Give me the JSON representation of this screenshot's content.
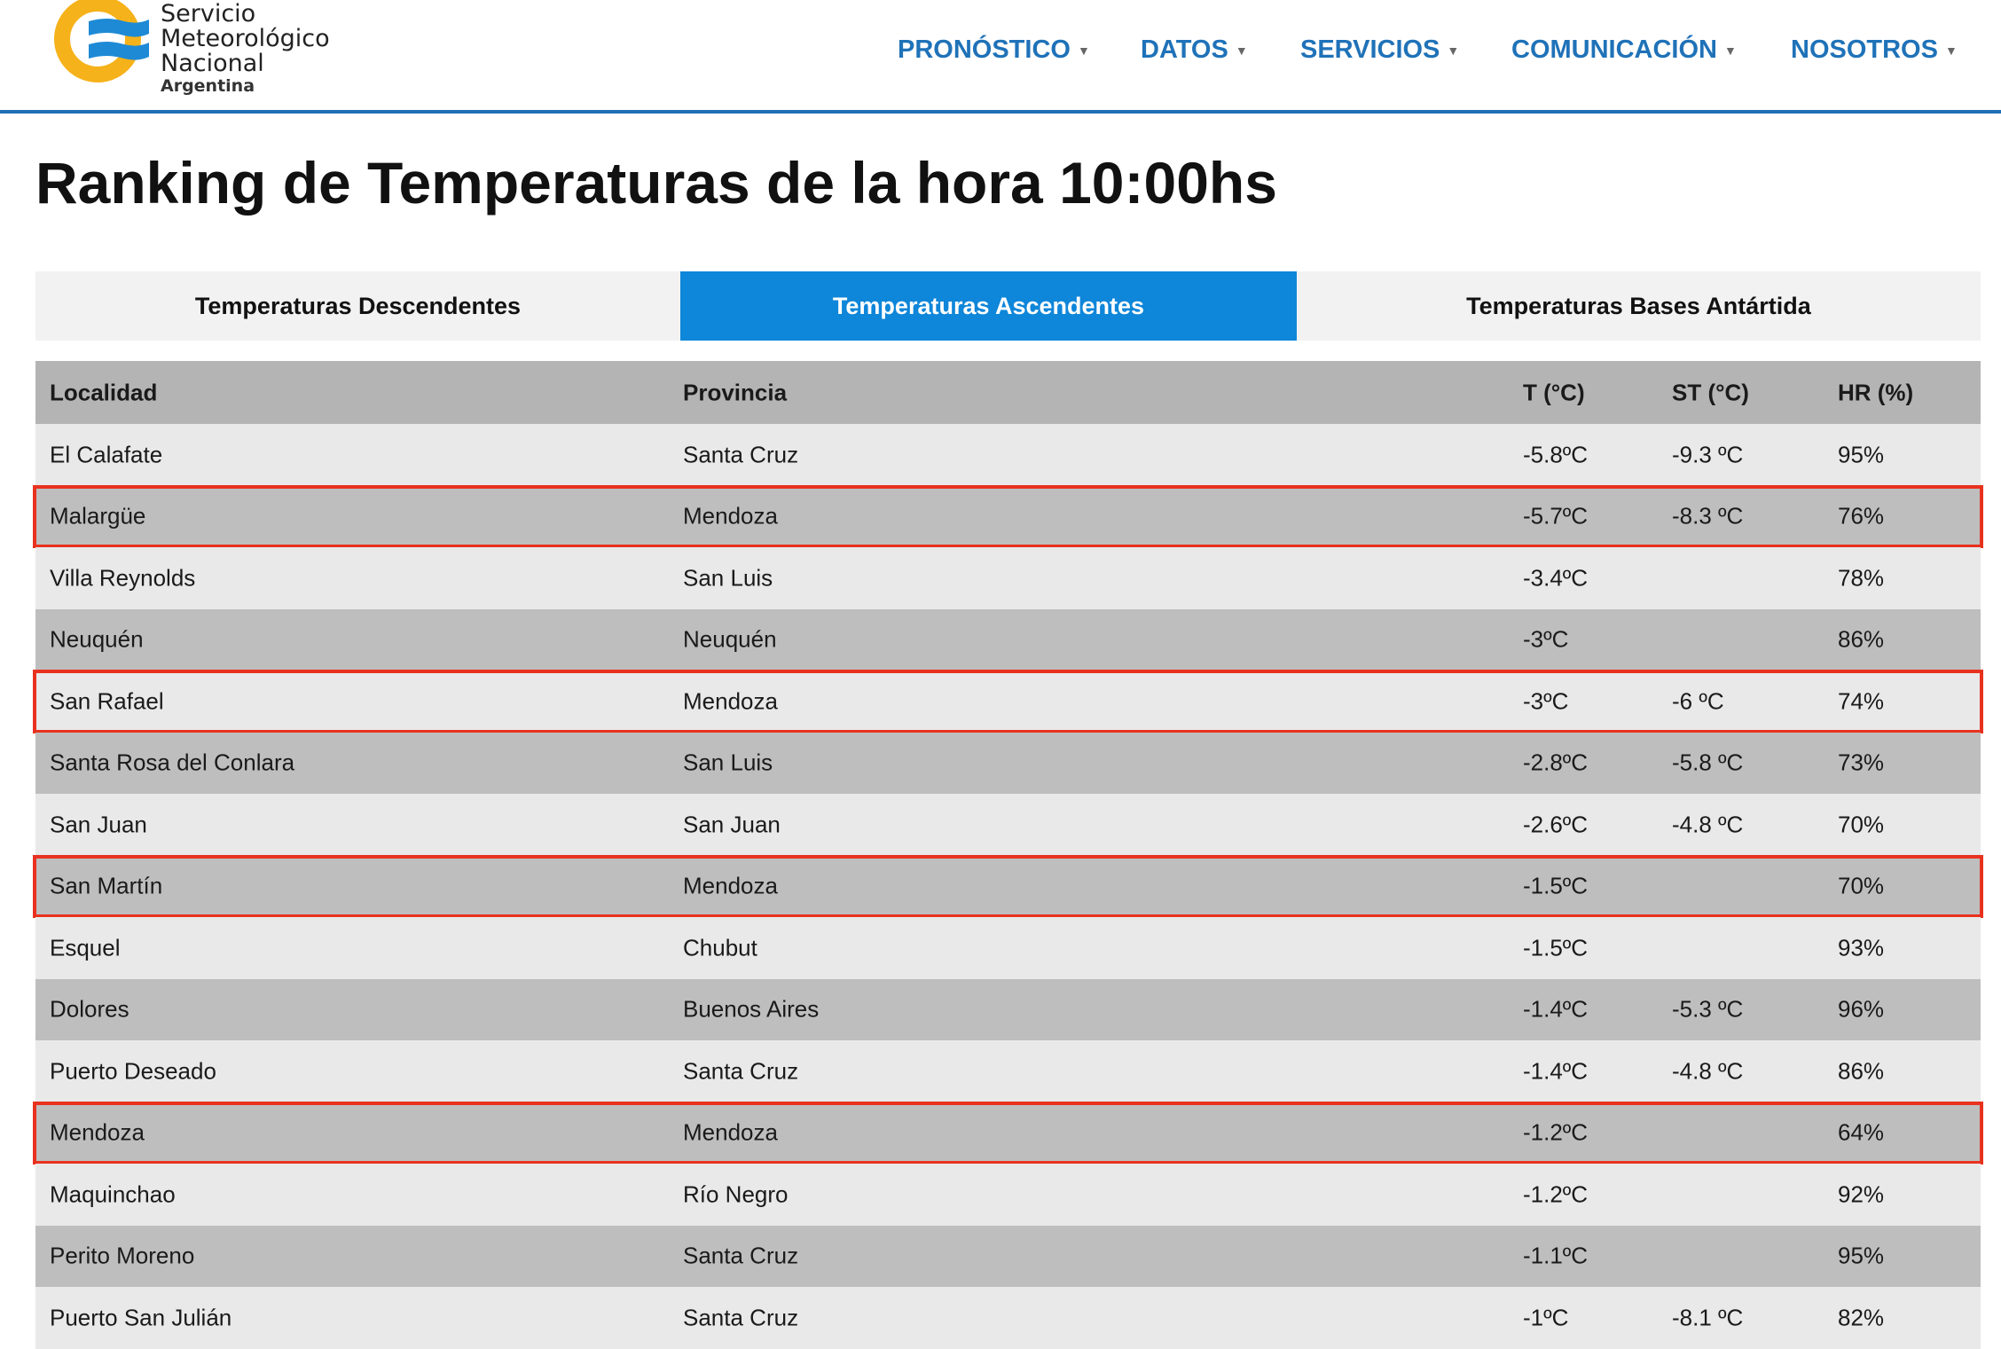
{
  "header": {
    "logo": {
      "line1": "Servicio",
      "line2": "Meteorológico",
      "line3": "Nacional",
      "line4": "Argentina"
    },
    "nav": [
      {
        "label": "PRONÓSTICO"
      },
      {
        "label": "DATOS"
      },
      {
        "label": "SERVICIOS"
      },
      {
        "label": "COMUNICACIÓN"
      },
      {
        "label": "NOSOTROS"
      }
    ],
    "accent_color": "#1f72b8"
  },
  "page_title": "Ranking de Temperaturas de la hora 10:00hs",
  "tabs": [
    {
      "label": "Temperaturas Descendentes",
      "active": false
    },
    {
      "label": "Temperaturas Ascendentes",
      "active": true
    },
    {
      "label": "Temperaturas Bases Antártida",
      "active": false
    }
  ],
  "table": {
    "columns": [
      "Localidad",
      "Provincia",
      "T (°C)",
      "ST (°C)",
      "HR (%)"
    ],
    "highlight_color": "#e8321f",
    "rows": [
      {
        "localidad": "El Calafate",
        "provincia": "Santa Cruz",
        "t": "-5.8ºC",
        "st": "-9.3 ºC",
        "hr": "95%",
        "highlighted": false
      },
      {
        "localidad": "Malargüe",
        "provincia": "Mendoza",
        "t": "-5.7ºC",
        "st": "-8.3 ºC",
        "hr": "76%",
        "highlighted": true
      },
      {
        "localidad": "Villa Reynolds",
        "provincia": "San Luis",
        "t": "-3.4ºC",
        "st": "",
        "hr": "78%",
        "highlighted": false
      },
      {
        "localidad": "Neuquén",
        "provincia": "Neuquén",
        "t": "-3ºC",
        "st": "",
        "hr": "86%",
        "highlighted": false
      },
      {
        "localidad": "San Rafael",
        "provincia": "Mendoza",
        "t": "-3ºC",
        "st": "-6 ºC",
        "hr": "74%",
        "highlighted": true
      },
      {
        "localidad": "Santa Rosa del Conlara",
        "provincia": "San Luis",
        "t": "-2.8ºC",
        "st": "-5.8 ºC",
        "hr": "73%",
        "highlighted": false
      },
      {
        "localidad": "San Juan",
        "provincia": "San Juan",
        "t": "-2.6ºC",
        "st": "-4.8 ºC",
        "hr": "70%",
        "highlighted": false
      },
      {
        "localidad": "San Martín",
        "provincia": "Mendoza",
        "t": "-1.5ºC",
        "st": "",
        "hr": "70%",
        "highlighted": true
      },
      {
        "localidad": "Esquel",
        "provincia": "Chubut",
        "t": "-1.5ºC",
        "st": "",
        "hr": "93%",
        "highlighted": false
      },
      {
        "localidad": "Dolores",
        "provincia": "Buenos Aires",
        "t": "-1.4ºC",
        "st": "-5.3 ºC",
        "hr": "96%",
        "highlighted": false
      },
      {
        "localidad": "Puerto Deseado",
        "provincia": "Santa Cruz",
        "t": "-1.4ºC",
        "st": "-4.8 ºC",
        "hr": "86%",
        "highlighted": false
      },
      {
        "localidad": "Mendoza",
        "provincia": "Mendoza",
        "t": "-1.2ºC",
        "st": "",
        "hr": "64%",
        "highlighted": true
      },
      {
        "localidad": "Maquinchao",
        "provincia": "Río Negro",
        "t": "-1.2ºC",
        "st": "",
        "hr": "92%",
        "highlighted": false
      },
      {
        "localidad": "Perito Moreno",
        "provincia": "Santa Cruz",
        "t": "-1.1ºC",
        "st": "",
        "hr": "95%",
        "highlighted": false
      },
      {
        "localidad": "Puerto San Julián",
        "provincia": "Santa Cruz",
        "t": "-1ºC",
        "st": "-8.1 ºC",
        "hr": "82%",
        "highlighted": false
      }
    ]
  }
}
